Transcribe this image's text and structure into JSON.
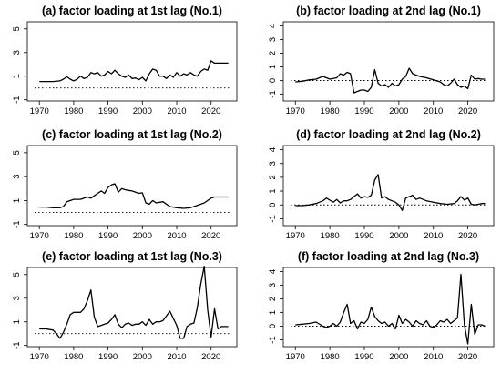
{
  "chart_data": [
    {
      "type": "line",
      "title": "(a) factor loading at 1st lag (No.1)",
      "x_ticks": [
        1970,
        1980,
        1990,
        2000,
        2010,
        2020
      ],
      "y_ticks": [
        -1,
        1,
        3,
        5
      ],
      "xlim": [
        1966.5,
        2027.5
      ],
      "ylim": [
        -1.1,
        5.6
      ],
      "reference_line": 0,
      "series": [
        {
          "x": [
            1970,
            1972,
            1974,
            1976,
            1977,
            1978,
            1979,
            1980,
            1981,
            1982,
            1983,
            1984,
            1985,
            1986,
            1987,
            1988,
            1989,
            1990,
            1991,
            1992,
            1993,
            1994,
            1995,
            1996,
            1997,
            1998,
            1999,
            2000,
            2001,
            2002,
            2003,
            2004,
            2005,
            2006,
            2007,
            2008,
            2009,
            2010,
            2011,
            2012,
            2013,
            2014,
            2015,
            2016,
            2017,
            2018,
            2019,
            2020,
            2021,
            2022,
            2023,
            2024,
            2025
          ],
          "y": [
            0.55,
            0.55,
            0.55,
            0.6,
            0.75,
            0.95,
            0.75,
            0.6,
            0.75,
            1.0,
            0.8,
            0.9,
            1.3,
            1.2,
            1.3,
            1.0,
            1.1,
            1.4,
            1.2,
            1.5,
            1.2,
            1.0,
            0.9,
            1.1,
            0.8,
            0.85,
            0.7,
            0.9,
            0.6,
            1.2,
            1.6,
            1.5,
            1.0,
            1.0,
            0.8,
            1.1,
            0.9,
            1.3,
            1.0,
            1.2,
            1.1,
            1.3,
            1.1,
            1.0,
            1.4,
            1.6,
            1.5,
            2.3,
            2.1,
            2.1,
            2.1,
            2.1,
            2.1
          ]
        }
      ]
    },
    {
      "type": "line",
      "title": "(b) factor loading at 2nd lag (No.1)",
      "x_ticks": [
        1970,
        1980,
        1990,
        2000,
        2010,
        2020
      ],
      "y_ticks": [
        -1,
        0,
        1,
        2,
        3,
        4
      ],
      "xlim": [
        1966.5,
        2027.5
      ],
      "ylim": [
        -1.5,
        4.3
      ],
      "reference_line": 0,
      "series": [
        {
          "x": [
            1970,
            1972,
            1974,
            1976,
            1978,
            1980,
            1982,
            1983,
            1984,
            1985,
            1986,
            1987,
            1988,
            1989,
            1990,
            1991,
            1992,
            1993,
            1994,
            1995,
            1996,
            1997,
            1998,
            1999,
            2000,
            2001,
            2002,
            2003,
            2004,
            2005,
            2006,
            2008,
            2010,
            2012,
            2013,
            2014,
            2015,
            2016,
            2017,
            2018,
            2019,
            2020,
            2021,
            2022,
            2023,
            2024,
            2025
          ],
          "y": [
            -0.1,
            -0.05,
            0.05,
            0.1,
            0.3,
            0.1,
            0.2,
            0.5,
            0.4,
            0.6,
            0.5,
            -0.9,
            -0.8,
            -0.7,
            -0.7,
            -0.8,
            -0.5,
            0.8,
            -0.2,
            -0.4,
            -0.3,
            -0.5,
            -0.2,
            -0.4,
            -0.3,
            0.1,
            0.3,
            0.9,
            0.5,
            0.4,
            0.3,
            0.2,
            0.05,
            -0.1,
            -0.3,
            -0.4,
            -0.2,
            0.1,
            -0.3,
            -0.5,
            -0.4,
            -0.6,
            0.4,
            0.1,
            0.15,
            0.1,
            0.1
          ]
        }
      ]
    },
    {
      "type": "line",
      "title": "(c) factor loading at 1st lag (No.2)",
      "x_ticks": [
        1970,
        1980,
        1990,
        2000,
        2010,
        2020
      ],
      "y_ticks": [
        -1,
        1,
        3,
        5
      ],
      "xlim": [
        1966.5,
        2027.5
      ],
      "ylim": [
        -1.1,
        5.6
      ],
      "reference_line": 0,
      "series": [
        {
          "x": [
            1970,
            1972,
            1974,
            1976,
            1977,
            1978,
            1980,
            1982,
            1984,
            1985,
            1986,
            1987,
            1988,
            1989,
            1990,
            1991,
            1992,
            1993,
            1994,
            1995,
            1996,
            1997,
            1998,
            1999,
            2000,
            2001,
            2002,
            2003,
            2004,
            2006,
            2008,
            2010,
            2012,
            2014,
            2016,
            2018,
            2019,
            2020,
            2021,
            2022,
            2023,
            2024,
            2025
          ],
          "y": [
            0.45,
            0.45,
            0.4,
            0.4,
            0.5,
            0.9,
            1.1,
            1.1,
            1.3,
            1.2,
            1.4,
            1.6,
            1.8,
            1.6,
            2.1,
            2.3,
            2.4,
            1.7,
            2.0,
            1.9,
            1.85,
            1.8,
            1.7,
            1.6,
            1.65,
            0.8,
            0.7,
            1.0,
            0.8,
            0.9,
            0.5,
            0.4,
            0.35,
            0.4,
            0.6,
            0.8,
            1.0,
            1.2,
            1.3,
            1.3,
            1.3,
            1.3,
            1.3
          ]
        }
      ]
    },
    {
      "type": "line",
      "title": "(d) factor loading at 2nd lag (No.2)",
      "x_ticks": [
        1970,
        1980,
        1990,
        2000,
        2010,
        2020
      ],
      "y_ticks": [
        -1,
        0,
        1,
        2,
        3,
        4
      ],
      "xlim": [
        1966.5,
        2027.5
      ],
      "ylim": [
        -1.5,
        4.3
      ],
      "reference_line": 0,
      "series": [
        {
          "x": [
            1970,
            1972,
            1974,
            1976,
            1978,
            1979,
            1980,
            1981,
            1982,
            1983,
            1984,
            1985,
            1986,
            1987,
            1988,
            1989,
            1990,
            1991,
            1992,
            1993,
            1994,
            1995,
            1996,
            1997,
            1998,
            1999,
            2000,
            2001,
            2002,
            2003,
            2004,
            2005,
            2006,
            2008,
            2010,
            2012,
            2014,
            2016,
            2017,
            2018,
            2019,
            2020,
            2021,
            2022,
            2023,
            2024,
            2025
          ],
          "y": [
            -0.05,
            -0.05,
            0.0,
            0.1,
            0.3,
            0.5,
            0.35,
            0.2,
            0.4,
            0.15,
            0.3,
            0.3,
            0.4,
            0.6,
            0.8,
            0.5,
            0.6,
            0.55,
            0.7,
            1.8,
            2.2,
            0.5,
            0.6,
            0.4,
            0.3,
            0.2,
            0.0,
            -0.4,
            0.5,
            0.6,
            0.7,
            0.4,
            0.5,
            0.3,
            0.2,
            0.1,
            0.05,
            0.1,
            0.3,
            0.6,
            0.35,
            0.5,
            0.05,
            0.0,
            0.05,
            0.1,
            0.1
          ]
        }
      ]
    },
    {
      "type": "line",
      "title": "(e) factor loading at 1st lag (No.3)",
      "x_ticks": [
        1970,
        1980,
        1990,
        2000,
        2010,
        2020
      ],
      "y_ticks": [
        -1,
        1,
        3,
        5
      ],
      "xlim": [
        1966.5,
        2027.5
      ],
      "ylim": [
        -1.1,
        5.6
      ],
      "reference_line": 0,
      "series": [
        {
          "x": [
            1970,
            1972,
            1974,
            1975,
            1976,
            1977,
            1978,
            1979,
            1980,
            1981,
            1982,
            1983,
            1984,
            1985,
            1986,
            1987,
            1988,
            1989,
            1990,
            1991,
            1992,
            1993,
            1994,
            1995,
            1996,
            1997,
            1998,
            1999,
            2000,
            2001,
            2002,
            2003,
            2004,
            2005,
            2006,
            2007,
            2008,
            2009,
            2010,
            2011,
            2012,
            2013,
            2014,
            2015,
            2016,
            2017,
            2018,
            2019,
            2020,
            2021,
            2022,
            2023,
            2024,
            2025
          ],
          "y": [
            0.4,
            0.4,
            0.3,
            0.0,
            -0.4,
            0.1,
            0.8,
            1.6,
            1.8,
            1.8,
            1.8,
            2.1,
            2.8,
            3.7,
            1.4,
            0.6,
            0.7,
            0.8,
            0.9,
            1.2,
            1.6,
            0.8,
            0.5,
            0.8,
            0.9,
            0.7,
            0.8,
            0.8,
            1.0,
            0.7,
            1.2,
            0.8,
            1.0,
            1.0,
            1.1,
            1.5,
            1.9,
            1.3,
            0.7,
            -0.4,
            -0.4,
            0.6,
            0.8,
            0.9,
            2.2,
            4.2,
            5.7,
            2.0,
            -0.3,
            2.1,
            0.4,
            0.6,
            0.6,
            0.6
          ]
        }
      ]
    },
    {
      "type": "line",
      "title": "(f) factor loading at 2nd lag (No.3)",
      "x_ticks": [
        1970,
        1980,
        1990,
        2000,
        2010,
        2020
      ],
      "y_ticks": [
        -1,
        0,
        1,
        2,
        3,
        4
      ],
      "xlim": [
        1966.5,
        2027.5
      ],
      "ylim": [
        -1.5,
        4.3
      ],
      "reference_line": 0,
      "series": [
        {
          "x": [
            1970,
            1972,
            1974,
            1976,
            1978,
            1979,
            1980,
            1981,
            1982,
            1983,
            1984,
            1985,
            1986,
            1987,
            1988,
            1989,
            1990,
            1991,
            1992,
            1993,
            1994,
            1995,
            1996,
            1997,
            1998,
            1999,
            2000,
            2001,
            2002,
            2003,
            2004,
            2005,
            2006,
            2007,
            2008,
            2009,
            2010,
            2011,
            2012,
            2013,
            2014,
            2015,
            2016,
            2017,
            2018,
            2019,
            2020,
            2021,
            2022,
            2023,
            2024,
            2025
          ],
          "y": [
            0.1,
            0.15,
            0.2,
            0.3,
            0.0,
            -0.1,
            0.0,
            0.2,
            0.0,
            0.3,
            1.0,
            1.6,
            0.2,
            0.4,
            -0.2,
            0.3,
            0.2,
            0.5,
            1.4,
            0.7,
            0.4,
            0.2,
            0.3,
            0.0,
            0.2,
            -0.2,
            0.8,
            0.2,
            0.5,
            0.3,
            0.0,
            0.4,
            0.2,
            0.1,
            0.4,
            0.0,
            -0.1,
            0.1,
            0.4,
            0.3,
            0.5,
            0.2,
            0.4,
            0.6,
            3.8,
            0.1,
            -1.3,
            1.6,
            -0.6,
            0.1,
            0.1,
            0.0
          ]
        }
      ]
    }
  ]
}
